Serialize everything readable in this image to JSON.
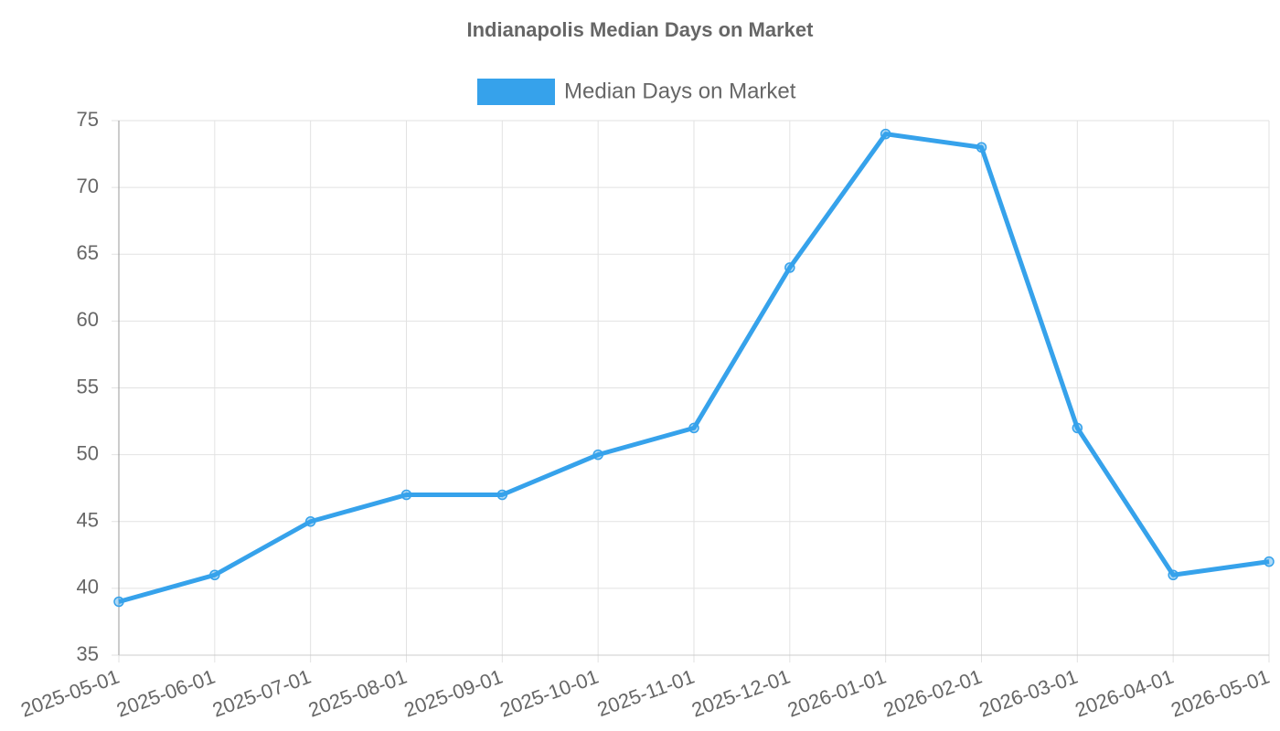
{
  "chart_data": {
    "type": "line",
    "title": "Indianapolis Median Days on Market",
    "categories": [
      "2025-05-01",
      "2025-06-01",
      "2025-07-01",
      "2025-08-01",
      "2025-09-01",
      "2025-10-01",
      "2025-11-01",
      "2025-12-01",
      "2026-01-01",
      "2026-02-01",
      "2026-03-01",
      "2026-04-01",
      "2026-05-01"
    ],
    "series": [
      {
        "name": "Median Days on Market",
        "color": "#36a2eb",
        "values": [
          39,
          41,
          45,
          47,
          47,
          50,
          52,
          64,
          74,
          73,
          52,
          41,
          42
        ]
      }
    ],
    "ylim": [
      35,
      75
    ],
    "yticks": [
      35,
      40,
      45,
      50,
      55,
      60,
      65,
      70,
      75
    ],
    "grid": true,
    "legend": "top"
  }
}
